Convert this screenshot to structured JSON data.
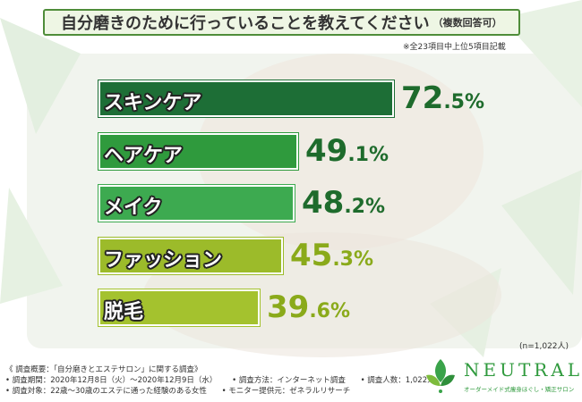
{
  "title": "自分磨きのために行っていることを教えてください",
  "title_sub": "（複数回答可）",
  "note": "※全23項目中上位5項目記載",
  "sample_note": "(n=1,022人)",
  "colors": {
    "accent": "#2f9a3d",
    "title_border": "#4f8d3a",
    "value_dark": "#1e6b2c",
    "value_light": "#8aaa1a"
  },
  "chart_data": {
    "type": "bar",
    "orientation": "horizontal",
    "categories": [
      "スキンケア",
      "ヘアケア",
      "メイク",
      "ファッション",
      "脱毛"
    ],
    "values": [
      72.5,
      49.1,
      48.2,
      45.3,
      39.6
    ],
    "value_labels": [
      {
        "int": "72",
        "dec": ".5%"
      },
      {
        "int": "49",
        "dec": ".1%"
      },
      {
        "int": "48",
        "dec": ".2%"
      },
      {
        "int": "45",
        "dec": ".3%"
      },
      {
        "int": "39",
        "dec": ".6%"
      }
    ],
    "bar_colors": [
      "#1d6e36",
      "#2f9a3d",
      "#3daa50",
      "#9cbb2a",
      "#a4c22e"
    ],
    "value_colors": [
      "#1e6b2c",
      "#1e6b2c",
      "#1e6b2c",
      "#8aaa1a",
      "#8aaa1a"
    ],
    "title": "自分磨きのために行っていることを教えてください",
    "grid": false
  },
  "footer": {
    "survey_outline": "《 調査概要：「自分磨きとエステサロン」に関する調査》",
    "period": "• 調査期間：2020年12月8日（火）～2020年12月9日（水）",
    "method": "• 調査方法：インターネット調査",
    "count": "• 調査人数：1,022人",
    "target": "• 調査対象：22歳～30歳のエステに通った経験のある女性",
    "provider": "• モニター提供元：ゼネラルリサーチ"
  },
  "logo": {
    "name": "NEUTRAL",
    "tagline": "オーダーメイド式痩身ほぐし・矯正サロン"
  }
}
